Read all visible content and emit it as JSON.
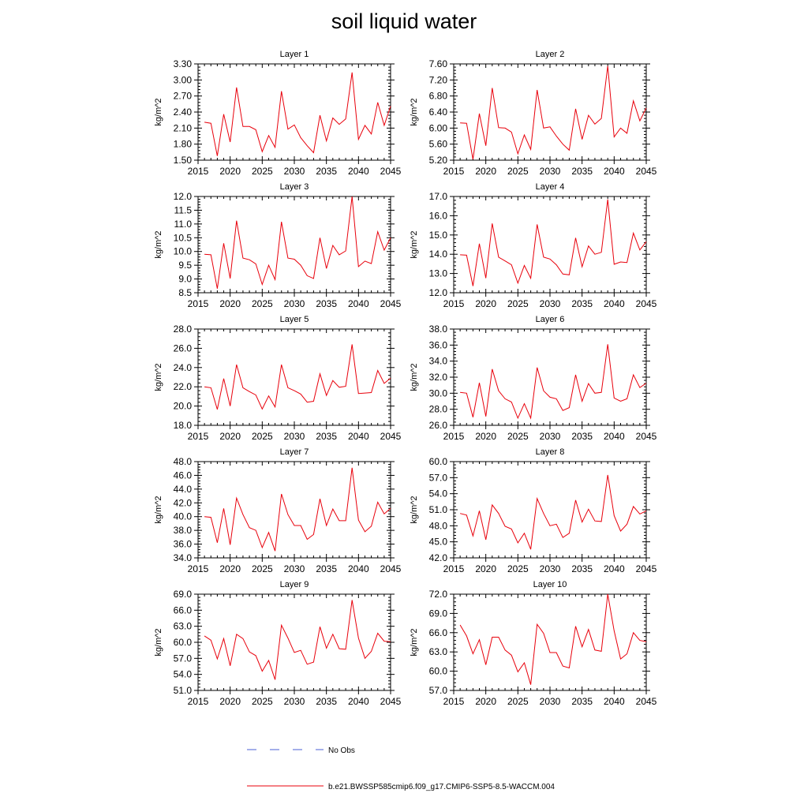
{
  "title": "soil liquid water",
  "legend": {
    "entries": [
      {
        "label": "No Obs",
        "color": "#4a5fd6",
        "style": "dashed"
      },
      {
        "label": "b.e21.BWSSP585cmip6.f09_g17.CMIP6-SSP5-8.5-WACCM.004",
        "color": "#e8000b",
        "style": "solid"
      }
    ]
  },
  "colors": {
    "series": "#e8000b",
    "axis": "#000000"
  },
  "chart_data": [
    {
      "type": "line",
      "title": "Layer 1",
      "ylabel": "kg/m^2",
      "xlim": [
        2015,
        2045
      ],
      "ylim": [
        1.5,
        3.3
      ],
      "xticks": [
        "2015",
        "2020",
        "2025",
        "2030",
        "2035",
        "2040",
        "2045"
      ],
      "yticks": [
        "1.50",
        "1.80",
        "2.10",
        "2.40",
        "2.70",
        "3.00",
        "3.30"
      ],
      "x": [
        2016,
        2017,
        2018,
        2019,
        2020,
        2021,
        2022,
        2023,
        2024,
        2025,
        2026,
        2027,
        2028,
        2029,
        2030,
        2031,
        2032,
        2033,
        2034,
        2035,
        2036,
        2037,
        2038,
        2039,
        2040,
        2041,
        2042,
        2043,
        2044,
        2045
      ],
      "values": [
        2.21,
        2.19,
        1.58,
        2.36,
        1.84,
        2.86,
        2.13,
        2.13,
        2.07,
        1.66,
        1.96,
        1.74,
        2.79,
        2.08,
        2.16,
        1.92,
        1.77,
        1.64,
        2.34,
        1.86,
        2.29,
        2.17,
        2.27,
        3.14,
        1.89,
        2.15,
        1.99,
        2.58,
        2.15,
        2.51
      ],
      "series_name": "b.e21.BWSSP585cmip6.f09_g17.CMIP6-SSP5-8.5-WACCM.004"
    },
    {
      "type": "line",
      "title": "Layer 2",
      "ylabel": "kg/m^2",
      "xlim": [
        2015,
        2045
      ],
      "ylim": [
        5.2,
        7.6
      ],
      "xticks": [
        "2015",
        "2020",
        "2025",
        "2030",
        "2035",
        "2040",
        "2045"
      ],
      "yticks": [
        "5.20",
        "5.60",
        "6.00",
        "6.40",
        "6.80",
        "7.20",
        "7.60"
      ],
      "x": [
        2016,
        2017,
        2018,
        2019,
        2020,
        2021,
        2022,
        2023,
        2024,
        2025,
        2026,
        2027,
        2028,
        2029,
        2030,
        2031,
        2032,
        2033,
        2034,
        2035,
        2036,
        2037,
        2038,
        2039,
        2040,
        2041,
        2042,
        2043,
        2044,
        2045
      ],
      "values": [
        6.13,
        6.12,
        5.22,
        6.36,
        5.56,
        7.0,
        6.01,
        6.0,
        5.9,
        5.36,
        5.83,
        5.47,
        6.95,
        6.0,
        6.03,
        5.8,
        5.6,
        5.45,
        6.48,
        5.72,
        6.32,
        6.1,
        6.24,
        7.55,
        5.78,
        6.0,
        5.87,
        6.68,
        6.18,
        6.5
      ],
      "series_name": "b.e21.BWSSP585cmip6.f09_g17.CMIP6-SSP5-8.5-WACCM.004"
    },
    {
      "type": "line",
      "title": "Layer 3",
      "ylabel": "kg/m^2",
      "xlim": [
        2015,
        2045
      ],
      "ylim": [
        8.5,
        12.0
      ],
      "xticks": [
        "2015",
        "2020",
        "2025",
        "2030",
        "2035",
        "2040",
        "2045"
      ],
      "yticks": [
        "8.5",
        "9.0",
        "9.5",
        "10.0",
        "10.5",
        "11.0",
        "11.5",
        "12.0"
      ],
      "x": [
        2016,
        2017,
        2018,
        2019,
        2020,
        2021,
        2022,
        2023,
        2024,
        2025,
        2026,
        2027,
        2028,
        2029,
        2030,
        2031,
        2032,
        2033,
        2034,
        2035,
        2036,
        2037,
        2038,
        2039,
        2040,
        2041,
        2042,
        2043,
        2044,
        2045
      ],
      "values": [
        9.9,
        9.88,
        8.65,
        10.3,
        9.02,
        11.12,
        9.76,
        9.7,
        9.55,
        8.8,
        9.5,
        8.98,
        11.08,
        9.76,
        9.72,
        9.5,
        9.12,
        9.02,
        10.5,
        9.38,
        10.22,
        9.88,
        10.02,
        12.0,
        9.45,
        9.65,
        9.56,
        10.72,
        10.05,
        10.5
      ],
      "series_name": "b.e21.BWSSP585cmip6.f09_g17.CMIP6-SSP5-8.5-WACCM.004"
    },
    {
      "type": "line",
      "title": "Layer 4",
      "ylabel": "kg/m^2",
      "xlim": [
        2015,
        2045
      ],
      "ylim": [
        12.0,
        17.0
      ],
      "xticks": [
        "2015",
        "2020",
        "2025",
        "2030",
        "2035",
        "2040",
        "2045"
      ],
      "yticks": [
        "12.0",
        "13.0",
        "14.0",
        "15.0",
        "16.0",
        "17.0"
      ],
      "x": [
        2016,
        2017,
        2018,
        2019,
        2020,
        2021,
        2022,
        2023,
        2024,
        2025,
        2026,
        2027,
        2028,
        2029,
        2030,
        2031,
        2032,
        2033,
        2034,
        2035,
        2036,
        2037,
        2038,
        2039,
        2040,
        2041,
        2042,
        2043,
        2044,
        2045
      ],
      "values": [
        13.97,
        13.95,
        12.35,
        14.55,
        12.76,
        15.6,
        13.85,
        13.65,
        13.45,
        12.5,
        13.42,
        12.75,
        15.55,
        13.85,
        13.75,
        13.45,
        12.97,
        12.93,
        14.85,
        13.35,
        14.43,
        14.0,
        14.1,
        16.85,
        13.48,
        13.6,
        13.57,
        15.1,
        14.22,
        14.65
      ],
      "series_name": "b.e21.BWSSP585cmip6.f09_g17.CMIP6-SSP5-8.5-WACCM.004"
    },
    {
      "type": "line",
      "title": "Layer 5",
      "ylabel": "kg/m^2",
      "xlim": [
        2015,
        2045
      ],
      "ylim": [
        18.0,
        28.0
      ],
      "xticks": [
        "2015",
        "2020",
        "2025",
        "2030",
        "2035",
        "2040",
        "2045"
      ],
      "yticks": [
        "18.0",
        "20.0",
        "22.0",
        "24.0",
        "26.0",
        "28.0"
      ],
      "x": [
        2016,
        2017,
        2018,
        2019,
        2020,
        2021,
        2022,
        2023,
        2024,
        2025,
        2026,
        2027,
        2028,
        2029,
        2030,
        2031,
        2032,
        2033,
        2034,
        2035,
        2036,
        2037,
        2038,
        2039,
        2040,
        2041,
        2042,
        2043,
        2044,
        2045
      ],
      "values": [
        22.0,
        21.9,
        19.65,
        22.85,
        20.0,
        24.3,
        21.9,
        21.5,
        21.15,
        19.7,
        21.05,
        19.9,
        24.3,
        21.9,
        21.6,
        21.25,
        20.4,
        20.5,
        23.35,
        21.1,
        22.65,
        21.95,
        22.05,
        26.4,
        21.3,
        21.35,
        21.4,
        23.7,
        22.35,
        22.9
      ],
      "series_name": "b.e21.BWSSP585cmip6.f09_g17.CMIP6-SSP5-8.5-WACCM.004"
    },
    {
      "type": "line",
      "title": "Layer 6",
      "ylabel": "kg/m^2",
      "xlim": [
        2015,
        2045
      ],
      "ylim": [
        26.0,
        38.0
      ],
      "xticks": [
        "2015",
        "2020",
        "2025",
        "2030",
        "2035",
        "2040",
        "2045"
      ],
      "yticks": [
        "26.0",
        "28.0",
        "30.0",
        "32.0",
        "34.0",
        "36.0",
        "38.0"
      ],
      "x": [
        2016,
        2017,
        2018,
        2019,
        2020,
        2021,
        2022,
        2023,
        2024,
        2025,
        2026,
        2027,
        2028,
        2029,
        2030,
        2031,
        2032,
        2033,
        2034,
        2035,
        2036,
        2037,
        2038,
        2039,
        2040,
        2041,
        2042,
        2043,
        2044,
        2045
      ],
      "values": [
        30.1,
        30.0,
        27.0,
        31.3,
        27.1,
        33.0,
        30.3,
        29.3,
        28.9,
        26.9,
        28.7,
        26.9,
        33.2,
        30.3,
        29.5,
        29.3,
        27.85,
        28.2,
        32.3,
        29.0,
        31.2,
        30.0,
        30.1,
        36.1,
        29.4,
        29.0,
        29.3,
        32.3,
        30.7,
        31.25
      ],
      "series_name": "b.e21.BWSSP585cmip6.f09_g17.CMIP6-SSP5-8.5-WACCM.004"
    },
    {
      "type": "line",
      "title": "Layer 7",
      "ylabel": "kg/m^2",
      "xlim": [
        2015,
        2045
      ],
      "ylim": [
        34.0,
        48.0
      ],
      "xticks": [
        "2015",
        "2020",
        "2025",
        "2030",
        "2035",
        "2040",
        "2045"
      ],
      "yticks": [
        "34.0",
        "36.0",
        "38.0",
        "40.0",
        "42.0",
        "44.0",
        "46.0",
        "48.0"
      ],
      "x": [
        2016,
        2017,
        2018,
        2019,
        2020,
        2021,
        2022,
        2023,
        2024,
        2025,
        2026,
        2027,
        2028,
        2029,
        2030,
        2031,
        2032,
        2033,
        2034,
        2035,
        2036,
        2037,
        2038,
        2039,
        2040,
        2041,
        2042,
        2043,
        2044,
        2045
      ],
      "values": [
        40.0,
        39.9,
        36.2,
        41.2,
        35.9,
        42.7,
        40.3,
        38.4,
        38.0,
        35.5,
        37.7,
        35.0,
        43.3,
        40.3,
        38.7,
        38.7,
        36.7,
        37.4,
        42.6,
        38.7,
        41.1,
        39.4,
        39.4,
        47.1,
        39.5,
        37.8,
        38.6,
        42.1,
        40.4,
        41.2
      ],
      "series_name": "b.e21.BWSSP585cmip6.f09_g17.CMIP6-SSP5-8.5-WACCM.004"
    },
    {
      "type": "line",
      "title": "Layer 8",
      "ylabel": "kg/m^2",
      "xlim": [
        2015,
        2045
      ],
      "ylim": [
        42.0,
        60.0
      ],
      "xticks": [
        "2015",
        "2020",
        "2025",
        "2030",
        "2035",
        "2040",
        "2045"
      ],
      "yticks": [
        "42.0",
        "45.0",
        "48.0",
        "51.0",
        "54.0",
        "57.0",
        "60.0"
      ],
      "x": [
        2016,
        2017,
        2018,
        2019,
        2020,
        2021,
        2022,
        2023,
        2024,
        2025,
        2026,
        2027,
        2028,
        2029,
        2030,
        2031,
        2032,
        2033,
        2034,
        2035,
        2036,
        2037,
        2038,
        2039,
        2040,
        2041,
        2042,
        2043,
        2044,
        2045
      ],
      "values": [
        50.3,
        50.0,
        46.1,
        50.8,
        45.4,
        51.9,
        50.3,
        47.9,
        47.4,
        44.8,
        46.6,
        43.6,
        53.1,
        50.3,
        48.0,
        48.3,
        45.8,
        46.6,
        52.8,
        48.7,
        51.1,
        48.9,
        48.8,
        57.5,
        49.9,
        47.0,
        48.3,
        51.6,
        50.2,
        50.8
      ],
      "series_name": "b.e21.BWSSP585cmip6.f09_g17.CMIP6-SSP5-8.5-WACCM.004"
    },
    {
      "type": "line",
      "title": "Layer 9",
      "ylabel": "kg/m^2",
      "xlim": [
        2015,
        2045
      ],
      "ylim": [
        51.0,
        69.0
      ],
      "xticks": [
        "2015",
        "2020",
        "2025",
        "2030",
        "2035",
        "2040",
        "2045"
      ],
      "yticks": [
        "51.0",
        "54.0",
        "57.0",
        "60.0",
        "63.0",
        "66.0",
        "69.0"
      ],
      "x": [
        2016,
        2017,
        2018,
        2019,
        2020,
        2021,
        2022,
        2023,
        2024,
        2025,
        2026,
        2027,
        2028,
        2029,
        2030,
        2031,
        2032,
        2033,
        2034,
        2035,
        2036,
        2037,
        2038,
        2039,
        2040,
        2041,
        2042,
        2043,
        2044,
        2045
      ],
      "values": [
        61.2,
        60.4,
        56.9,
        60.7,
        55.6,
        61.5,
        60.7,
        58.2,
        57.5,
        54.6,
        56.6,
        53.0,
        63.2,
        60.8,
        58.1,
        58.5,
        55.9,
        56.3,
        62.9,
        58.9,
        61.5,
        58.8,
        58.7,
        67.9,
        60.8,
        57.0,
        58.3,
        61.7,
        60.2,
        60.1
      ],
      "series_name": "b.e21.BWSSP585cmip6.f09_g17.CMIP6-SSP5-8.5-WACCM.004"
    },
    {
      "type": "line",
      "title": "Layer 10",
      "ylabel": "kg/m^2",
      "xlim": [
        2015,
        2045
      ],
      "ylim": [
        57.0,
        72.0
      ],
      "xticks": [
        "2015",
        "2020",
        "2025",
        "2030",
        "2035",
        "2040",
        "2045"
      ],
      "yticks": [
        "57.0",
        "60.0",
        "63.0",
        "66.0",
        "69.0",
        "72.0"
      ],
      "x": [
        2016,
        2017,
        2018,
        2019,
        2020,
        2021,
        2022,
        2023,
        2024,
        2025,
        2026,
        2027,
        2028,
        2029,
        2030,
        2031,
        2032,
        2033,
        2034,
        2035,
        2036,
        2037,
        2038,
        2039,
        2040,
        2041,
        2042,
        2043,
        2044,
        2045
      ],
      "values": [
        67.2,
        65.5,
        62.7,
        64.9,
        61.0,
        65.3,
        65.3,
        63.3,
        62.5,
        59.9,
        61.3,
        57.9,
        67.3,
        65.9,
        62.9,
        62.9,
        60.8,
        60.5,
        67.0,
        63.8,
        66.5,
        63.3,
        63.1,
        72.0,
        66.3,
        61.9,
        62.7,
        66.0,
        64.8,
        64.6
      ],
      "series_name": "b.e21.BWSSP585cmip6.f09_g17.CMIP6-SSP5-8.5-WACCM.004"
    }
  ]
}
